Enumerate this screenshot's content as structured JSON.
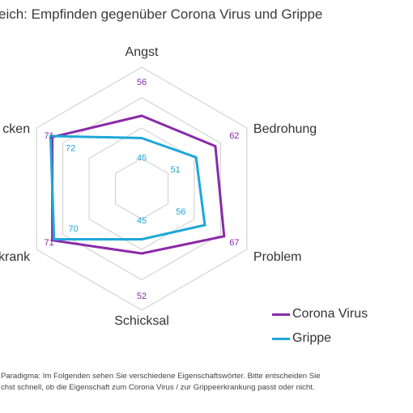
{
  "title": "eich: Empfinden gegenüber Corona Virus und Grippe",
  "footnote": [
    "Paradigma: Im Folgenden sehen Sie verschiedene Eigenschaftswörter. Bitte entscheiden Sie",
    "chst schnell, ob die Eigenschaft zum Corona Virus / zur Grippeerkrankung passt oder nicht."
  ],
  "colors": {
    "corona": "#8a2aa8",
    "grippe": "#1ea7d9",
    "grid": "#cccccc"
  },
  "chart_data": {
    "type": "radar",
    "axes": [
      "Angst",
      "Bedrohung",
      "Problem",
      "Schicksal",
      "krank",
      "cken"
    ],
    "rlim": [
      20,
      80
    ],
    "series": [
      {
        "name": "Corona Virus",
        "values": [
          56,
          62,
          67,
          52,
          71,
          71
        ]
      },
      {
        "name": "Grippe",
        "values": [
          45,
          51,
          56,
          45,
          70,
          72
        ]
      }
    ],
    "legend": "bottom-right",
    "grid": true
  }
}
